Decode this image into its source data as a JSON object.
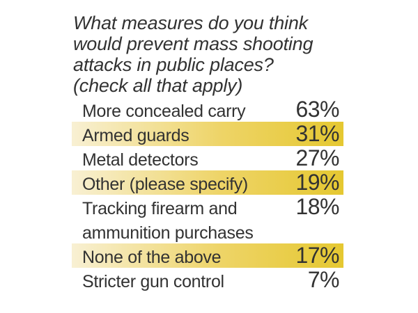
{
  "chart_data": {
    "type": "table",
    "title": "What measures do you think\nwould prevent mass shooting\nattacks in public places?\n(check all that apply)",
    "rows": [
      {
        "label": "More concealed carry",
        "value": "63%",
        "highlight": false
      },
      {
        "label": "Armed guards",
        "value": "31%",
        "highlight": true
      },
      {
        "label": "Metal detectors",
        "value": "27%",
        "highlight": false
      },
      {
        "label": "Other (please specify)",
        "value": "19%",
        "highlight": true
      },
      {
        "label": "Tracking firearm and\nammunition purchases",
        "value": "18%",
        "highlight": false
      },
      {
        "label": "None of the above",
        "value": "17%",
        "highlight": true
      },
      {
        "label": "Stricter gun control",
        "value": "7%",
        "highlight": false
      }
    ],
    "categories": [
      "More concealed carry",
      "Armed guards",
      "Metal detectors",
      "Other (please specify)",
      "Tracking firearm and ammunition purchases",
      "None of the above",
      "Stricter gun control"
    ],
    "values": [
      63,
      31,
      27,
      19,
      18,
      17,
      7
    ],
    "value_unit": "%",
    "legend": "none",
    "colors": {
      "text": "#323232",
      "highlight_gradient_start": "#f8f0d3",
      "highlight_gradient_mid": "#eed467",
      "highlight_gradient_end": "#e5c831",
      "background": "#ffffff"
    }
  }
}
